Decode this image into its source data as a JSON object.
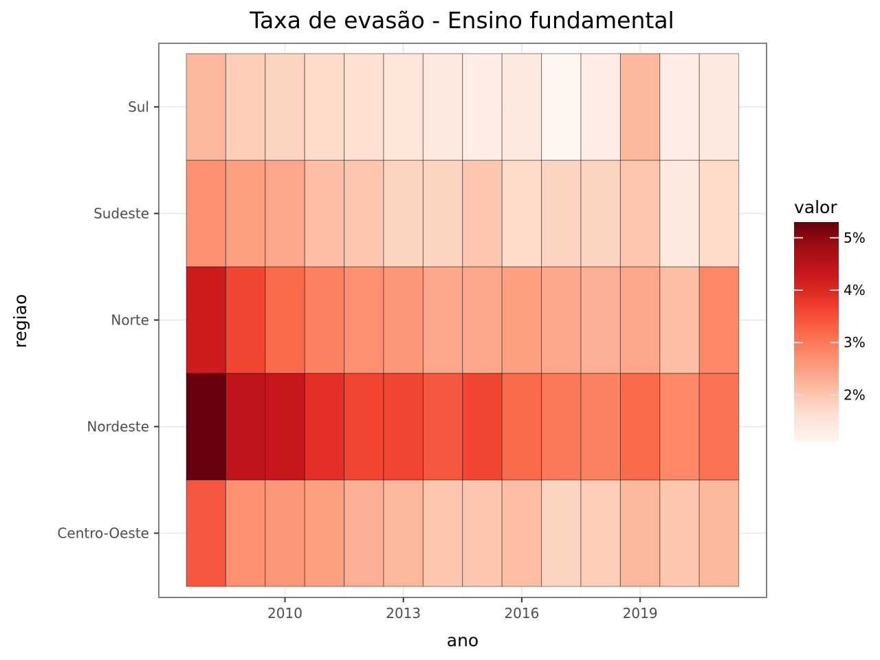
{
  "chart_data": {
    "type": "heatmap",
    "title": "Taxa de evasão - Ensino fundamental",
    "xlabel": "ano",
    "ylabel": "regiao",
    "x": [
      2008,
      2009,
      2010,
      2011,
      2012,
      2013,
      2014,
      2015,
      2016,
      2017,
      2018,
      2019,
      2020,
      2021
    ],
    "x_ticks": [
      "2010",
      "2013",
      "2016",
      "2019"
    ],
    "y": [
      "Centro-Oeste",
      "Nordeste",
      "Norte",
      "Sudeste",
      "Sul"
    ],
    "values": [
      [
        3.4,
        2.7,
        2.6,
        2.5,
        2.3,
        2.2,
        2.0,
        2.0,
        2.1,
        1.8,
        1.9,
        2.2,
        2.0,
        2.2
      ],
      [
        5.3,
        4.4,
        4.3,
        3.9,
        3.6,
        3.6,
        3.4,
        3.6,
        3.2,
        3.0,
        2.9,
        3.2,
        2.8,
        3.1
      ],
      [
        4.2,
        3.6,
        3.2,
        2.9,
        2.7,
        2.6,
        2.4,
        2.4,
        2.5,
        2.4,
        2.3,
        2.4,
        2.1,
        2.8
      ],
      [
        2.7,
        2.5,
        2.4,
        2.1,
        2.0,
        1.8,
        1.8,
        2.0,
        1.7,
        1.8,
        1.8,
        2.0,
        1.4,
        1.7
      ],
      [
        2.2,
        1.9,
        1.8,
        1.7,
        1.6,
        1.5,
        1.4,
        1.3,
        1.4,
        1.1,
        1.3,
        2.2,
        1.3,
        1.4
      ]
    ],
    "legend": {
      "title": "valor",
      "ticks": [
        {
          "value": 5,
          "label": "5%"
        },
        {
          "value": 4,
          "label": "4%"
        },
        {
          "value": 3,
          "label": "3%"
        },
        {
          "value": 2,
          "label": "2%"
        }
      ],
      "range": [
        1.1,
        5.3
      ],
      "placement": "right"
    },
    "colors": [
      "#fff5f0",
      "#fee0d2",
      "#fcbba1",
      "#fc9272",
      "#fb6a4a",
      "#ef3b2c",
      "#cb181d",
      "#a50f15",
      "#67000d"
    ],
    "grid": true
  }
}
